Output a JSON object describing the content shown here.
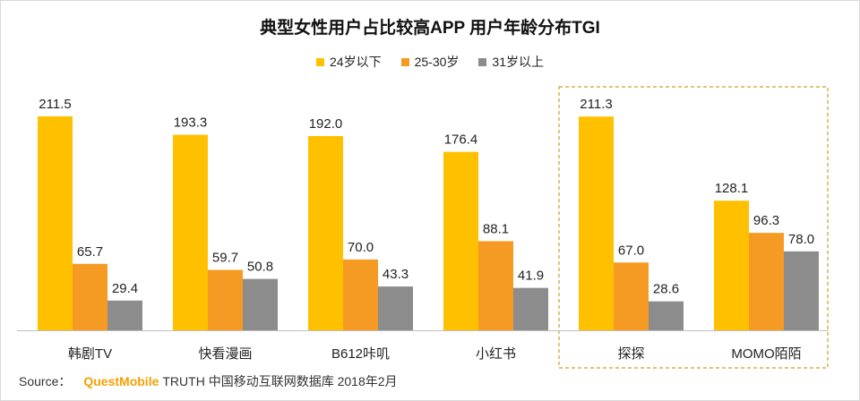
{
  "chart_data": {
    "type": "bar",
    "title": "典型女性用户占比较高APP 用户年龄分布TGI",
    "xlabel": "",
    "ylabel": "",
    "categories": [
      "韩剧TV",
      "快看漫画",
      "B612咔叽",
      "小红书",
      "探探",
      "MOMO陌陌"
    ],
    "series": [
      {
        "name": "24岁以下",
        "color": "#ffc000",
        "values": [
          211.5,
          193.3,
          192.0,
          176.4,
          211.3,
          128.1
        ]
      },
      {
        "name": "25-30岁",
        "color": "#f59a23",
        "values": [
          65.7,
          59.7,
          70.0,
          88.1,
          67.0,
          96.3
        ]
      },
      {
        "name": "31岁以上",
        "color": "#8c8c8c",
        "values": [
          29.4,
          50.8,
          43.3,
          41.9,
          28.6,
          78.0
        ]
      }
    ],
    "ylim": [
      0,
      211.5
    ],
    "grid": false,
    "legend_position": "top-center",
    "highlight_box_categories": [
      "探探",
      "MOMO陌陌"
    ]
  },
  "source": {
    "prefix": "Source：",
    "brand": "QuestMobile",
    "text": "TRUTH 中国移动互联网数据库 2018年2月"
  }
}
